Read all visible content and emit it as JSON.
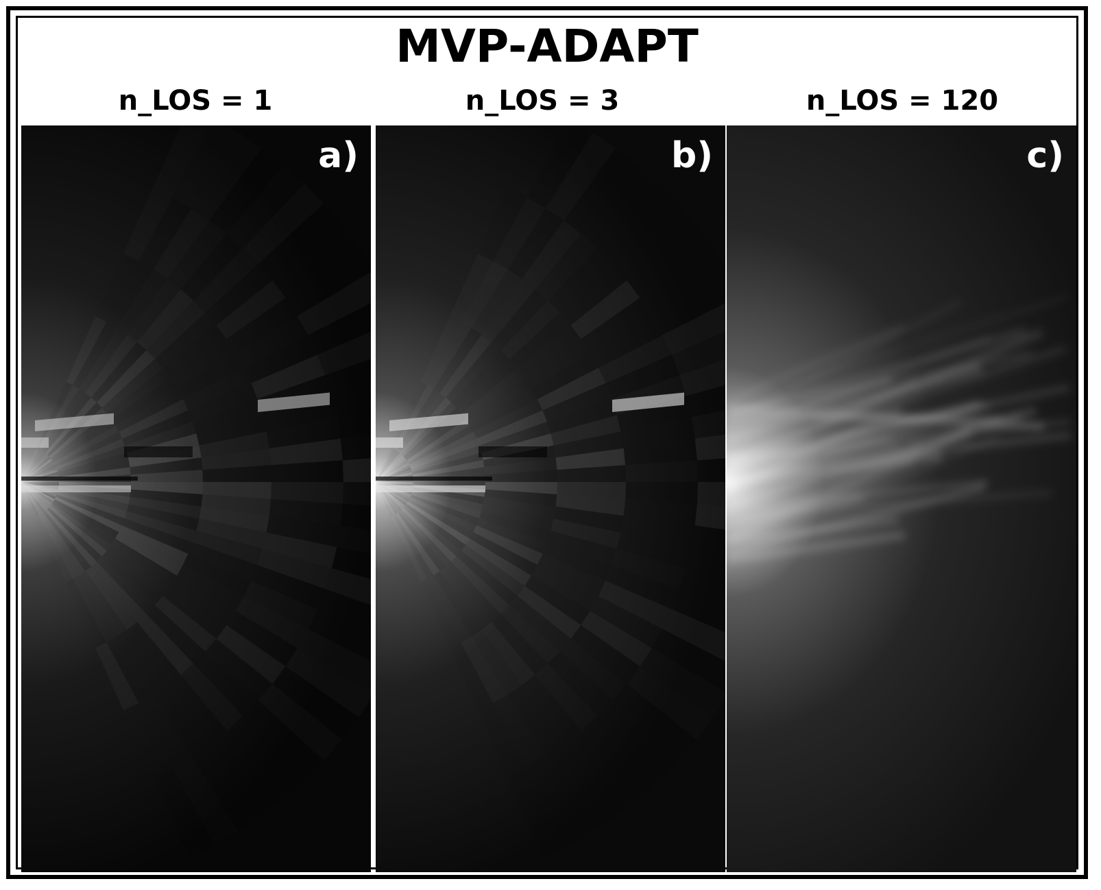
{
  "figure": {
    "title": "MVP-ADAPT",
    "panels": [
      {
        "label": "a)",
        "heading": "n_LOS = 1",
        "style": "blocky"
      },
      {
        "label": "b)",
        "heading": "n_LOS = 3",
        "style": "blocky-bright"
      },
      {
        "label": "c)",
        "heading": "n_LOS = 120",
        "style": "smooth"
      }
    ]
  }
}
